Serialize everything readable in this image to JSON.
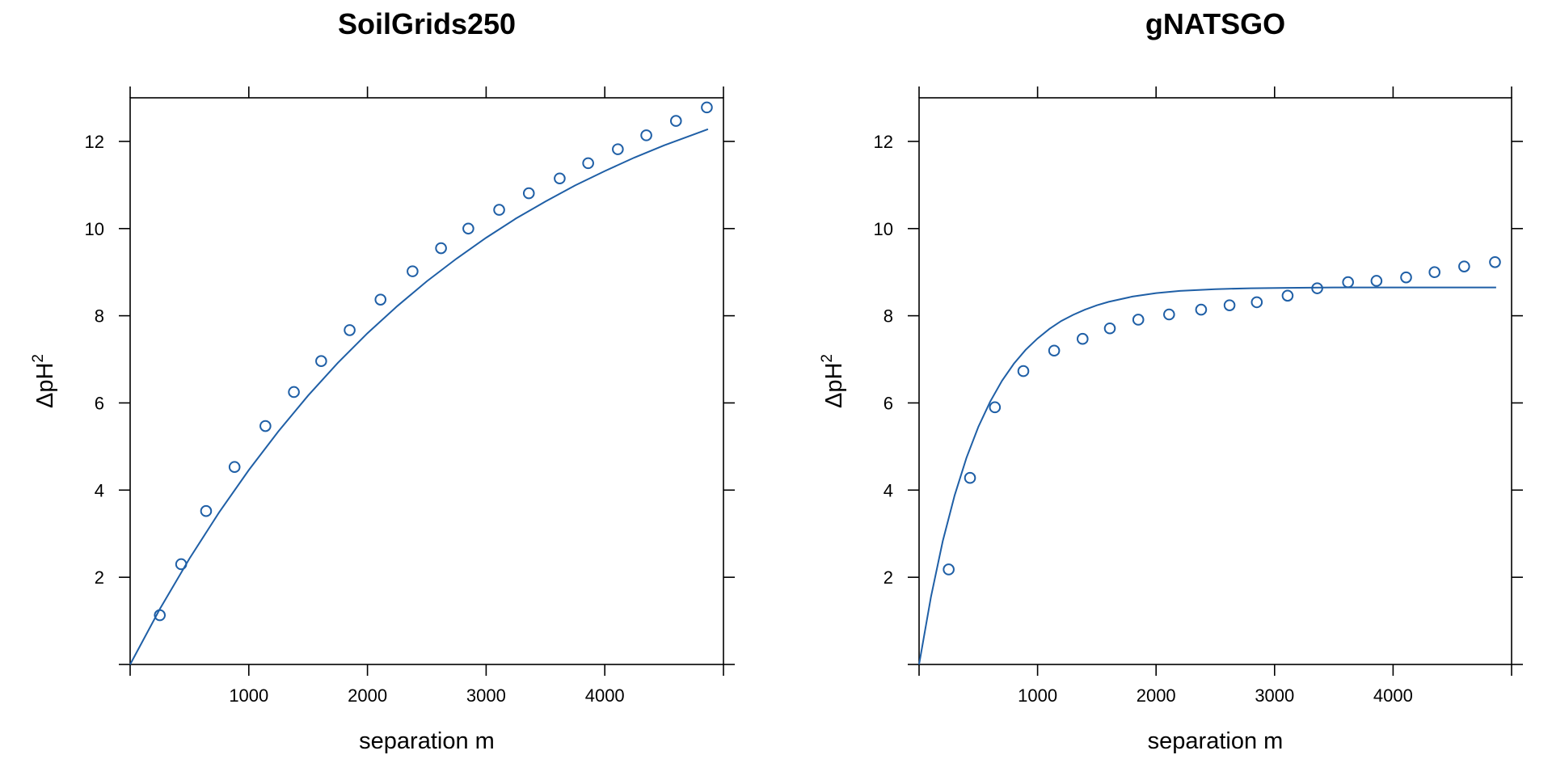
{
  "chart_data": [
    {
      "type": "scatter",
      "title": "SoilGrids250",
      "xlabel": "separation m",
      "ylabel_base": "ΔpH",
      "ylabel_sup": "2",
      "xlim": [
        0,
        5000
      ],
      "ylim": [
        0,
        13
      ],
      "xticks": [
        1000,
        2000,
        3000,
        4000
      ],
      "yticks": [
        2,
        4,
        6,
        8,
        10,
        12
      ],
      "color": "#1f5fa6",
      "points": {
        "x": [
          250,
          430,
          640,
          880,
          1140,
          1380,
          1610,
          1850,
          2110,
          2380,
          2620,
          2850,
          3110,
          3360,
          3620,
          3860,
          4110,
          4350,
          4600,
          4860
        ],
        "y": [
          1.13,
          2.3,
          3.52,
          4.53,
          5.47,
          6.25,
          6.96,
          7.67,
          8.37,
          9.02,
          9.55,
          10.0,
          10.43,
          10.81,
          11.15,
          11.5,
          11.82,
          12.14,
          12.47,
          12.78
        ]
      },
      "fit": {
        "x": [
          0,
          250,
          500,
          750,
          1000,
          1250,
          1500,
          1750,
          2000,
          2250,
          2500,
          2750,
          3000,
          3250,
          3500,
          3750,
          4000,
          4250,
          4500,
          4750,
          4870
        ],
        "y": [
          0,
          1.27,
          2.43,
          3.49,
          4.46,
          5.35,
          6.17,
          6.92,
          7.6,
          8.22,
          8.79,
          9.31,
          9.79,
          10.23,
          10.62,
          10.99,
          11.32,
          11.63,
          11.91,
          12.16,
          12.28
        ]
      }
    },
    {
      "type": "scatter",
      "title": "gNATSGO",
      "xlabel": "separation m",
      "ylabel_base": "ΔpH",
      "ylabel_sup": "2",
      "xlim": [
        0,
        5000
      ],
      "ylim": [
        0,
        13
      ],
      "xticks": [
        1000,
        2000,
        3000,
        4000
      ],
      "yticks": [
        2,
        4,
        6,
        8,
        10,
        12
      ],
      "color": "#1f5fa6",
      "points": {
        "x": [
          250,
          430,
          640,
          880,
          1140,
          1380,
          1610,
          1850,
          2110,
          2380,
          2620,
          2850,
          3110,
          3360,
          3620,
          3860,
          4110,
          4350,
          4600,
          4860
        ],
        "y": [
          2.18,
          4.28,
          5.9,
          6.73,
          7.2,
          7.47,
          7.71,
          7.91,
          8.03,
          8.14,
          8.24,
          8.31,
          8.46,
          8.63,
          8.77,
          8.8,
          8.88,
          9.0,
          9.13,
          9.23
        ]
      },
      "fit": {
        "x": [
          0,
          100,
          200,
          300,
          400,
          500,
          600,
          700,
          800,
          900,
          1000,
          1100,
          1200,
          1300,
          1400,
          1500,
          1600,
          1800,
          2000,
          2200,
          2500,
          2800,
          3100,
          3500,
          4000,
          4500,
          4870
        ],
        "y": [
          0,
          1.55,
          2.83,
          3.88,
          4.74,
          5.45,
          6.03,
          6.51,
          6.9,
          7.22,
          7.48,
          7.7,
          7.88,
          8.02,
          8.14,
          8.24,
          8.32,
          8.44,
          8.52,
          8.57,
          8.61,
          8.63,
          8.64,
          8.65,
          8.65,
          8.65,
          8.65
        ]
      }
    }
  ]
}
